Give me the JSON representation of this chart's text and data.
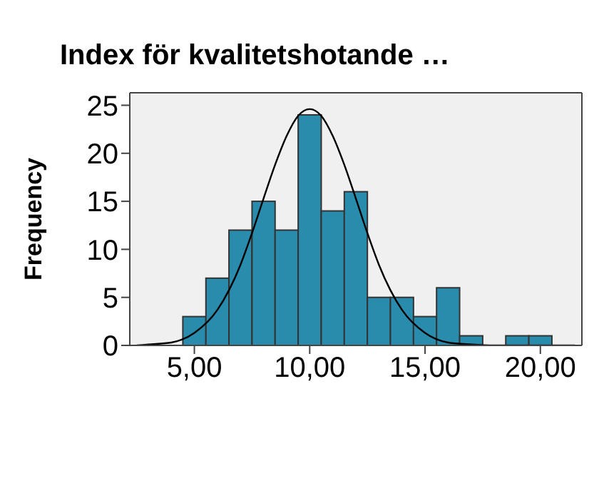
{
  "chart_data": {
    "type": "histogram",
    "title": "Index för kvalitetshotande …",
    "ylabel": "Frequency",
    "bins": [
      4.5,
      5.5,
      6.5,
      7.5,
      8.5,
      9.5,
      10.5,
      11.5,
      12.5,
      13.5,
      14.5,
      15.5,
      16.5,
      17.5,
      18.5,
      19.5,
      20.5
    ],
    "values": [
      3,
      7,
      12,
      15,
      12,
      24,
      14,
      16,
      5,
      5,
      3,
      6,
      1,
      0,
      1,
      1
    ],
    "color": "#2a8cad",
    "series": [
      {
        "type": "line",
        "color": "#000000",
        "x": [
          2.5,
          3,
          4,
          5,
          6,
          7,
          7.5,
          8,
          8.5,
          9,
          9.5,
          10,
          10.5,
          11,
          11.5,
          12,
          12.5,
          13,
          14,
          15,
          16,
          17,
          18,
          19,
          21.5
        ],
        "values": [
          0,
          0.1,
          0.3,
          1.3,
          3.7,
          8.4,
          11.7,
          15.3,
          18.8,
          21.8,
          23.9,
          24.6,
          23.9,
          21.8,
          18.8,
          15.3,
          11.7,
          8.4,
          3.7,
          1.3,
          0.3,
          0.1,
          0,
          0,
          0
        ]
      }
    ],
    "xlim": [
      2.2,
      21.8
    ],
    "xticks": [
      {
        "value": 5,
        "label": "5,00"
      },
      {
        "value": 10,
        "label": "10,00"
      },
      {
        "value": 15,
        "label": "15,00"
      },
      {
        "value": 20,
        "label": "20,00"
      }
    ],
    "ylim": [
      0,
      26.3
    ],
    "yticks": [
      0,
      5,
      10,
      15,
      20,
      25
    ],
    "grid": false
  }
}
